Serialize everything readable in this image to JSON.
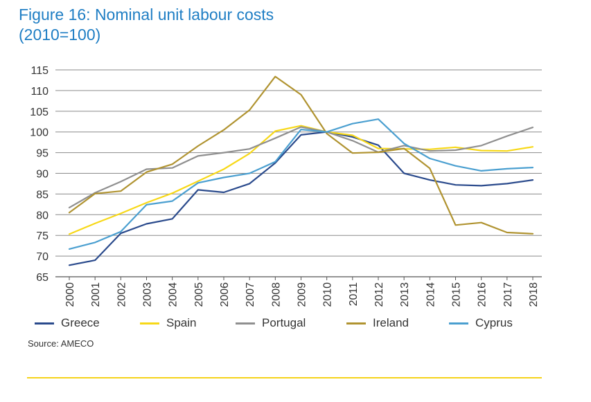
{
  "title": {
    "line1": "Figure 16: Nominal unit labour costs",
    "line2": "(2010=100)"
  },
  "source": "Source: AMECO",
  "chart_data": {
    "type": "line",
    "title": "Figure 16: Nominal unit labour costs (2010=100)",
    "xlabel": "",
    "ylabel": "",
    "ylim": [
      65,
      115
    ],
    "yticks": [
      65,
      70,
      75,
      80,
      85,
      90,
      95,
      100,
      105,
      110,
      115
    ],
    "grid": true,
    "legend_position": "bottom",
    "categories": [
      "2000",
      "2001",
      "2002",
      "2003",
      "2004",
      "2005",
      "2006",
      "2007",
      "2008",
      "2009",
      "2010",
      "2011",
      "2012",
      "2013",
      "2014",
      "2015",
      "2016",
      "2017",
      "2018"
    ],
    "series": [
      {
        "name": "Greece",
        "color": "#2a4a8c",
        "values": [
          67.8,
          69.0,
          75.5,
          77.8,
          79.0,
          86.0,
          85.4,
          87.5,
          92.5,
          99.3,
          100.0,
          98.8,
          96.8,
          90.0,
          88.4,
          87.2,
          87.0,
          87.5,
          88.4
        ]
      },
      {
        "name": "Spain",
        "color": "#f7d817",
        "values": [
          75.3,
          77.9,
          80.3,
          82.9,
          85.2,
          88.1,
          91.0,
          94.8,
          100.2,
          101.5,
          100.0,
          99.2,
          96.0,
          95.9,
          95.8,
          96.3,
          95.5,
          95.4,
          96.4
        ]
      },
      {
        "name": "Portugal",
        "color": "#8f8f8f",
        "values": [
          81.7,
          85.3,
          88.0,
          91.0,
          91.3,
          94.2,
          95.0,
          95.9,
          98.5,
          101.2,
          100.0,
          97.9,
          95.1,
          96.7,
          95.4,
          95.6,
          96.7,
          99.0,
          101.1
        ]
      },
      {
        "name": "Ireland",
        "color": "#b09330",
        "values": [
          80.5,
          85.1,
          85.7,
          90.3,
          92.2,
          96.6,
          100.5,
          105.3,
          113.4,
          109.0,
          99.6,
          94.9,
          95.1,
          96.0,
          91.2,
          77.5,
          78.1,
          75.7,
          75.4
        ]
      },
      {
        "name": "Cyprus",
        "color": "#4a9fd0",
        "values": [
          71.7,
          73.3,
          75.9,
          82.4,
          83.3,
          87.7,
          89.0,
          90.0,
          92.8,
          100.6,
          100.0,
          102.0,
          103.1,
          97.2,
          93.6,
          91.8,
          90.6,
          91.1,
          91.4
        ]
      }
    ]
  }
}
